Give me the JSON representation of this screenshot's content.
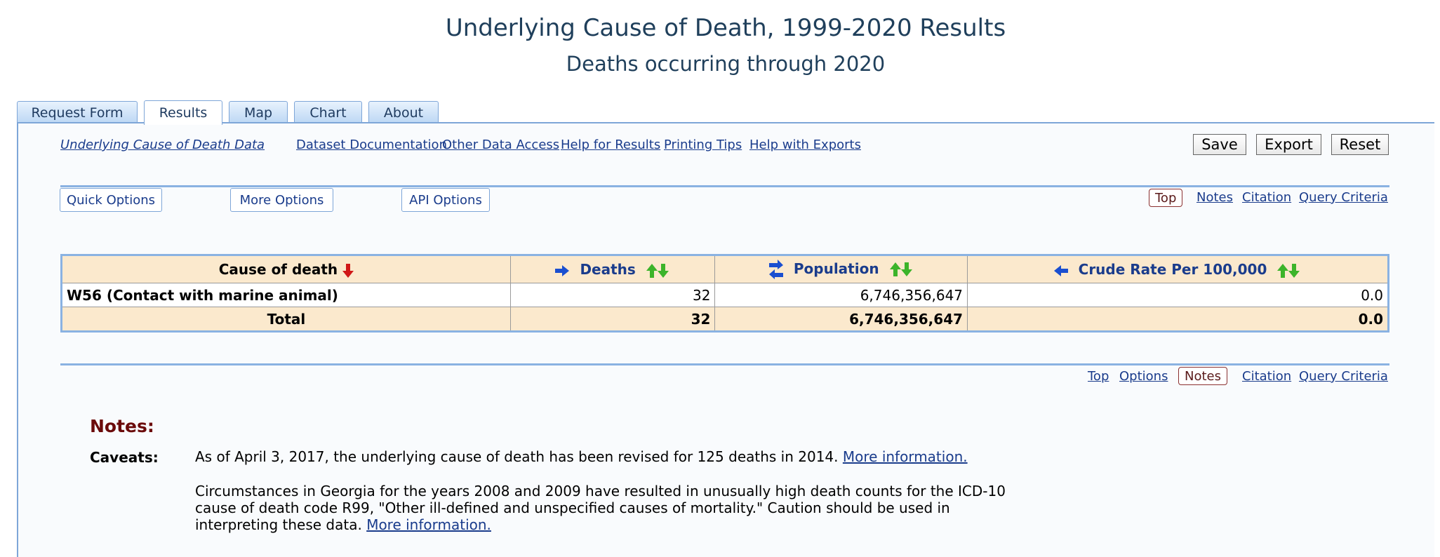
{
  "header": {
    "title": "Underlying Cause of Death, 1999-2020 Results",
    "subtitle": "Deaths occurring through 2020"
  },
  "tabs": [
    {
      "label": "Request Form",
      "active": false
    },
    {
      "label": "Results",
      "active": true
    },
    {
      "label": "Map",
      "active": false
    },
    {
      "label": "Chart",
      "active": false
    },
    {
      "label": "About",
      "active": false
    }
  ],
  "toplinks": {
    "data": "Underlying Cause of Death Data",
    "documentation": "Dataset Documentation",
    "other_access": "Other Data Access",
    "help_results": "Help for Results",
    "printing": "Printing Tips",
    "help_exports": "Help with Exports"
  },
  "actions": {
    "save": "Save",
    "export": "Export",
    "reset": "Reset"
  },
  "options": {
    "quick": "Quick Options",
    "more": "More Options",
    "api": "API Options"
  },
  "nav_top": {
    "top": "Top",
    "notes": "Notes",
    "citation": "Citation",
    "query": "Query Criteria"
  },
  "nav_bottom": {
    "top": "Top",
    "options": "Options",
    "notes": "Notes",
    "citation": "Citation",
    "query": "Query Criteria"
  },
  "table": {
    "headers": {
      "cause": "Cause of death",
      "deaths": "Deaths",
      "population": "Population",
      "rate": "Crude Rate Per 100,000"
    },
    "rows": [
      {
        "cause": "W56 (Contact with marine animal)",
        "deaths": "32",
        "population": "6,746,356,647",
        "rate": "0.0"
      }
    ],
    "total": {
      "label": "Total",
      "deaths": "32",
      "population": "6,746,356,647",
      "rate": "0.0"
    }
  },
  "notes": {
    "heading": "Notes:",
    "caveats_label": "Caveats:",
    "caveat1": "As of April 3, 2017, the underlying cause of death has been revised for 125 deaths in 2014.",
    "caveat1_link": "More information.",
    "caveat2": "Circumstances in Georgia for the years 2008 and 2009 have resulted in unusually high death counts for the ICD-10 cause of death code R99, \"Other ill-defined and unspecified causes of mortality.\" Caution should be used in interpreting these data.",
    "caveat2_link": "More information."
  },
  "colors": {
    "accent": "#8ab2e2",
    "header_bg": "#fbe9cd",
    "link": "#1a3c8c",
    "notes_heading": "#6b0b0b"
  }
}
